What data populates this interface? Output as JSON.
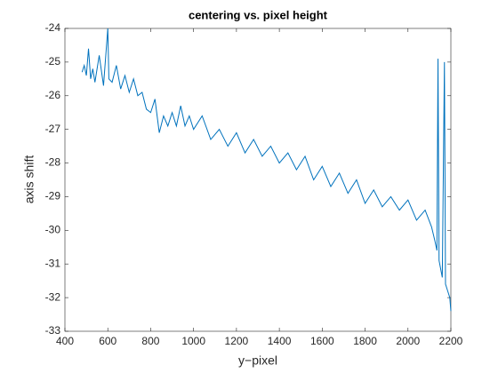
{
  "chart_data": {
    "type": "line",
    "title": "centering vs. pixel height",
    "xlabel": "y−pixel",
    "ylabel": "axis shift",
    "x": [
      480,
      490,
      500,
      510,
      520,
      530,
      540,
      560,
      580,
      600,
      605,
      620,
      640,
      660,
      680,
      700,
      720,
      740,
      760,
      780,
      800,
      820,
      840,
      860,
      880,
      900,
      920,
      940,
      960,
      980,
      1000,
      1040,
      1080,
      1120,
      1160,
      1200,
      1240,
      1280,
      1320,
      1360,
      1400,
      1440,
      1480,
      1520,
      1560,
      1600,
      1640,
      1680,
      1720,
      1760,
      1800,
      1840,
      1880,
      1920,
      1960,
      2000,
      2040,
      2080,
      2110,
      2125,
      2135,
      2140,
      2145,
      2160,
      2170,
      2175,
      2185,
      2195,
      2200
    ],
    "series": [
      {
        "name": "axis shift",
        "color": "#0072bd",
        "values": [
          -25.3,
          -25.1,
          -25.4,
          -24.6,
          -25.5,
          -25.2,
          -25.6,
          -24.8,
          -25.7,
          -24.0,
          -25.5,
          -25.6,
          -25.1,
          -25.8,
          -25.4,
          -25.9,
          -25.5,
          -26.0,
          -25.9,
          -26.4,
          -26.5,
          -26.1,
          -27.1,
          -26.6,
          -26.9,
          -26.5,
          -26.9,
          -26.3,
          -26.9,
          -26.6,
          -27.0,
          -26.6,
          -27.3,
          -27.0,
          -27.5,
          -27.1,
          -27.7,
          -27.3,
          -27.8,
          -27.5,
          -28.0,
          -27.7,
          -28.2,
          -27.8,
          -28.5,
          -28.1,
          -28.7,
          -28.3,
          -28.9,
          -28.5,
          -29.2,
          -28.8,
          -29.3,
          -29.0,
          -29.4,
          -29.1,
          -29.7,
          -29.4,
          -29.9,
          -30.3,
          -30.6,
          -24.9,
          -30.9,
          -31.4,
          -25.0,
          -31.6,
          -31.8,
          -32.0,
          -32.4
        ]
      }
    ],
    "xlim": [
      400,
      2200
    ],
    "xticks": [
      400,
      600,
      800,
      1000,
      1200,
      1400,
      1600,
      1800,
      2000,
      2200
    ],
    "ylim": [
      -33,
      -24
    ],
    "yticks": [
      -33,
      -32,
      -31,
      -30,
      -29,
      -28,
      -27,
      -26,
      -25,
      -24
    ]
  }
}
